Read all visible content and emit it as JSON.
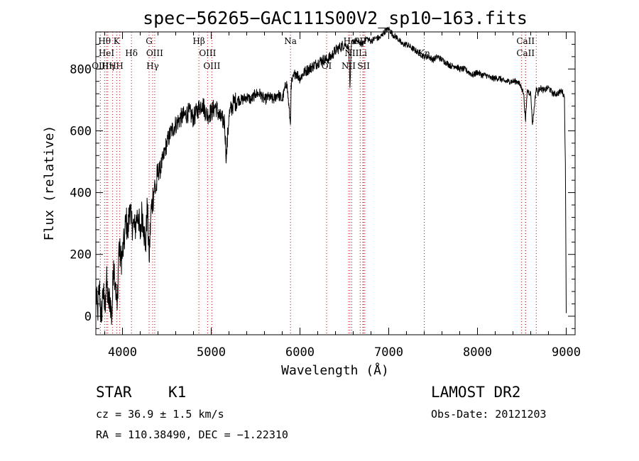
{
  "chart_data": {
    "type": "line",
    "title": "spec−56265−GAC111S00V2_sp10−163.fits",
    "xlabel": "Wavelength (Å)",
    "ylabel": "Flux (relative)",
    "xlim": [
      3700,
      9100
    ],
    "ylim": [
      -60,
      920
    ],
    "xticks": [
      4000,
      5000,
      6000,
      7000,
      8000,
      9000
    ],
    "yticks": [
      0,
      200,
      400,
      600,
      800
    ],
    "grid": false,
    "line_color": "#000000",
    "marker_color": "#cc0000",
    "series": [
      {
        "x": [
          3700,
          3720,
          3740,
          3760,
          3780,
          3800,
          3820,
          3840,
          3860,
          3880,
          3900,
          3920,
          3940,
          3960,
          3980,
          4000,
          4020,
          4040,
          4060,
          4080,
          4100,
          4120,
          4140,
          4160,
          4180,
          4200,
          4220,
          4240,
          4260,
          4280,
          4300,
          4320,
          4340,
          4360,
          4380,
          4400,
          4420,
          4440,
          4460,
          4480,
          4500,
          4550,
          4600,
          4650,
          4700,
          4750,
          4800,
          4850,
          4900,
          4950,
          5000,
          5050,
          5100,
          5150,
          5170,
          5200,
          5250,
          5300,
          5350,
          5400,
          5450,
          5500,
          5550,
          5600,
          5650,
          5700,
          5750,
          5800,
          5850,
          5893,
          5900,
          5950,
          6000,
          6050,
          6100,
          6150,
          6200,
          6250,
          6300,
          6350,
          6400,
          6450,
          6500,
          6550,
          6563,
          6580,
          6600,
          6650,
          6700,
          6750,
          6800,
          6850,
          6900,
          6950,
          7000,
          7050,
          7100,
          7150,
          7200,
          7250,
          7300,
          7350,
          7400,
          7450,
          7500,
          7550,
          7600,
          7650,
          7700,
          7750,
          7800,
          7850,
          7900,
          7950,
          8000,
          8050,
          8100,
          8150,
          8200,
          8250,
          8300,
          8350,
          8400,
          8450,
          8498,
          8520,
          8542,
          8560,
          8600,
          8620,
          8662,
          8680,
          8700,
          8750,
          8800,
          8850,
          8900,
          8950,
          8980,
          8990,
          9000
        ],
        "y": [
          80,
          10,
          100,
          -20,
          90,
          20,
          120,
          40,
          60,
          -10,
          180,
          110,
          20,
          230,
          180,
          200,
          240,
          320,
          260,
          360,
          300,
          300,
          280,
          320,
          330,
          250,
          340,
          290,
          220,
          360,
          180,
          330,
          380,
          420,
          410,
          470,
          470,
          490,
          510,
          540,
          560,
          600,
          620,
          640,
          650,
          660,
          640,
          670,
          690,
          650,
          660,
          680,
          640,
          630,
          510,
          650,
          690,
          700,
          700,
          710,
          700,
          720,
          720,
          700,
          710,
          700,
          720,
          700,
          760,
          620,
          750,
          790,
          770,
          790,
          800,
          810,
          820,
          830,
          830,
          840,
          860,
          870,
          880,
          870,
          740,
          880,
          890,
          890,
          880,
          900,
          890,
          900,
          900,
          920,
          930,
          910,
          900,
          880,
          880,
          870,
          860,
          850,
          840,
          840,
          830,
          840,
          830,
          820,
          810,
          810,
          800,
          800,
          790,
          780,
          790,
          780,
          780,
          770,
          770,
          770,
          760,
          760,
          760,
          760,
          740,
          720,
          630,
          730,
          720,
          620,
          740,
          720,
          740,
          730,
          740,
          720,
          720,
          730,
          710,
          500,
          10
        ]
      }
    ],
    "lines": [
      {
        "wl": 3750,
        "label": "OIII",
        "row": 3
      },
      {
        "wl": 3798,
        "label": "Hθ",
        "row": 1
      },
      {
        "wl": 3820,
        "label": "HeI",
        "row": 2
      },
      {
        "wl": 3835,
        "label": "Hη",
        "row": 3
      },
      {
        "wl": 3889,
        "label": "H",
        "row": 3
      },
      {
        "wl": 3934,
        "label": "K",
        "row": 1
      },
      {
        "wl": 3969,
        "label": "H",
        "row": 3
      },
      {
        "wl": 4101,
        "label": "Hδ",
        "row": 2
      },
      {
        "wl": 4300,
        "label": "G",
        "row": 1
      },
      {
        "wl": 4340,
        "label": "Hγ",
        "row": 3
      },
      {
        "wl": 4363,
        "label": "OIII",
        "row": 2
      },
      {
        "wl": 4861,
        "label": "Hβ",
        "row": 1
      },
      {
        "wl": 4959,
        "label": "OIII",
        "row": 2
      },
      {
        "wl": 5007,
        "label": "OIII",
        "row": 3
      },
      {
        "wl": 5893,
        "label": "Na",
        "row": 1
      },
      {
        "wl": 6300,
        "label": "OI",
        "row": 3
      },
      {
        "wl": 6548,
        "label": "NII",
        "row": 3
      },
      {
        "wl": 6563,
        "label": "Hα",
        "row": 1
      },
      {
        "wl": 6583,
        "label": "NII",
        "row": 2
      },
      {
        "wl": 6678,
        "label": "SII",
        "row": 1
      },
      {
        "wl": 6708,
        "label": "Li",
        "row": 2
      },
      {
        "wl": 6717,
        "label": "SII",
        "row": 3
      },
      {
        "wl": 6731,
        "label": "",
        "row": 3
      },
      {
        "wl": 7400,
        "label": "Kn",
        "row": 2
      },
      {
        "wl": 8498,
        "label": "",
        "row": 0
      },
      {
        "wl": 8542,
        "label": "CaII",
        "row": 1
      },
      {
        "wl": 8542,
        "label": "CaII",
        "row": 2
      },
      {
        "wl": 8662,
        "label": "",
        "row": 0
      }
    ]
  },
  "info": {
    "object_class": "STAR",
    "subclass": "K1",
    "cz": "cz = 36.9 ± 1.5 km/s",
    "radec": "RA = 110.38490, DEC =  −1.22310",
    "survey": "LAMOST DR2",
    "obs_date": "Obs-Date: 20121203"
  }
}
